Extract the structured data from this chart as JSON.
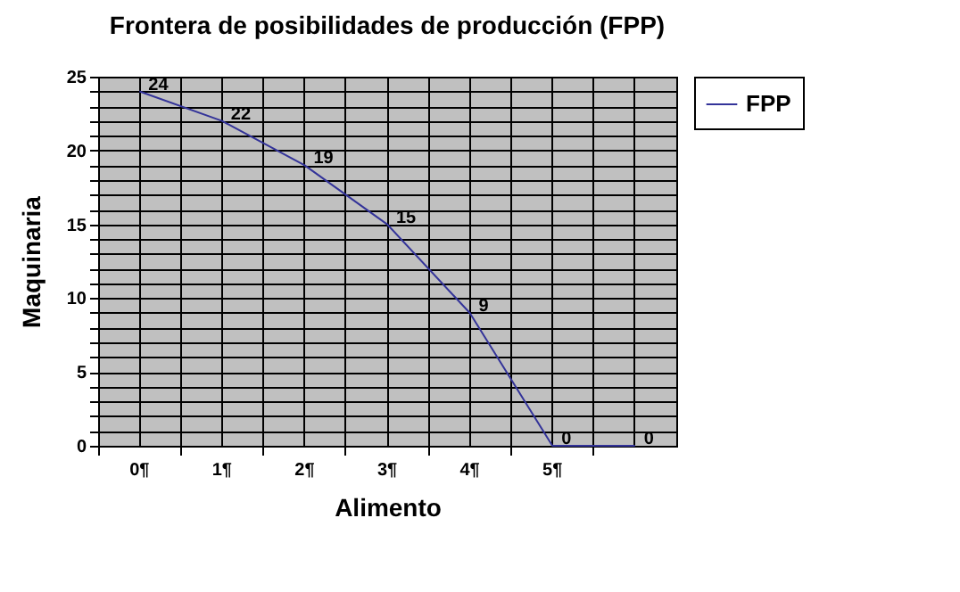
{
  "chart_data": {
    "type": "line",
    "title": "Frontera de posibilidades de producción (FPP)",
    "xlabel": "Alimento",
    "ylabel": "Maquinaria",
    "categories": [
      "0¶",
      "1¶",
      "2¶",
      "3¶",
      "4¶",
      "5¶",
      null
    ],
    "series": [
      {
        "name": "FPP",
        "color": "#333399",
        "values": [
          24,
          22,
          19,
          15,
          9,
          0,
          0
        ]
      }
    ],
    "ylim": [
      0,
      25
    ],
    "yticks": [
      0,
      {
        "value": 1,
        "label": null
      },
      {
        "value": 2,
        "label": null
      },
      {
        "value": 3,
        "label": null
      },
      {
        "value": 4,
        "label": null
      },
      5,
      {
        "value": 6,
        "label": null
      },
      {
        "value": 7,
        "label": null
      },
      {
        "value": 8,
        "label": null
      },
      {
        "value": 9,
        "label": null
      },
      10,
      {
        "value": 11,
        "label": null
      },
      {
        "value": 12,
        "label": null
      },
      {
        "value": 13,
        "label": null
      },
      {
        "value": 14,
        "label": null
      },
      15,
      {
        "value": 16,
        "label": null
      },
      {
        "value": 17,
        "label": null
      },
      {
        "value": 18,
        "label": null
      },
      {
        "value": 19,
        "label": null
      },
      20,
      {
        "value": 21,
        "label": null
      },
      {
        "value": 22,
        "label": null
      },
      {
        "value": 23,
        "label": null
      },
      {
        "value": 24,
        "label": null
      },
      25
    ],
    "grid": true,
    "legend": "right",
    "data_labels": true,
    "marker": "none",
    "line_style": "solid"
  }
}
